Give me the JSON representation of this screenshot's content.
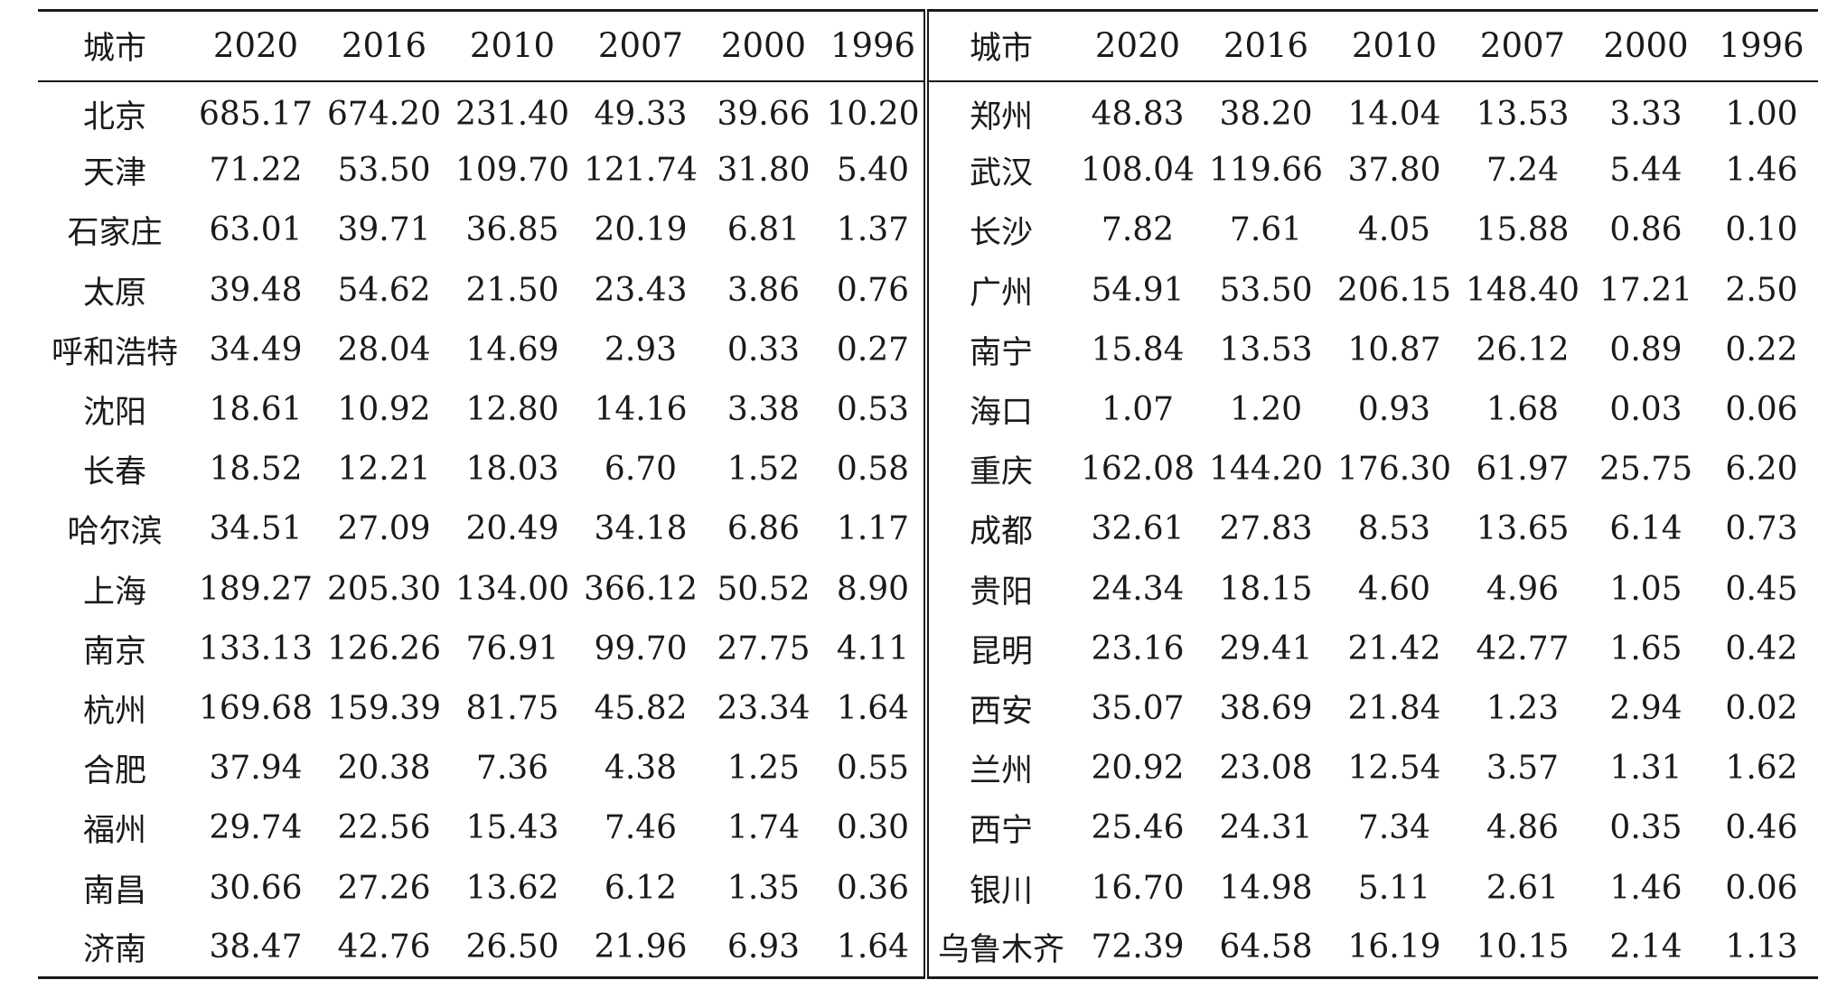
{
  "table": {
    "headers": [
      "城市",
      "2020",
      "2016",
      "2010",
      "2007",
      "2000",
      "1996"
    ],
    "left_rows": [
      [
        "北京",
        "685.17",
        "674.20",
        "231.40",
        "49.33",
        "39.66",
        "10.20"
      ],
      [
        "天津",
        "71.22",
        "53.50",
        "109.70",
        "121.74",
        "31.80",
        "5.40"
      ],
      [
        "石家庄",
        "63.01",
        "39.71",
        "36.85",
        "20.19",
        "6.81",
        "1.37"
      ],
      [
        "太原",
        "39.48",
        "54.62",
        "21.50",
        "23.43",
        "3.86",
        "0.76"
      ],
      [
        "呼和浩特",
        "34.49",
        "28.04",
        "14.69",
        "2.93",
        "0.33",
        "0.27"
      ],
      [
        "沈阳",
        "18.61",
        "10.92",
        "12.80",
        "14.16",
        "3.38",
        "0.53"
      ],
      [
        "长春",
        "18.52",
        "12.21",
        "18.03",
        "6.70",
        "1.52",
        "0.58"
      ],
      [
        "哈尔滨",
        "34.51",
        "27.09",
        "20.49",
        "34.18",
        "6.86",
        "1.17"
      ],
      [
        "上海",
        "189.27",
        "205.30",
        "134.00",
        "366.12",
        "50.52",
        "8.90"
      ],
      [
        "南京",
        "133.13",
        "126.26",
        "76.91",
        "99.70",
        "27.75",
        "4.11"
      ],
      [
        "杭州",
        "169.68",
        "159.39",
        "81.75",
        "45.82",
        "23.34",
        "1.64"
      ],
      [
        "合肥",
        "37.94",
        "20.38",
        "7.36",
        "4.38",
        "1.25",
        "0.55"
      ],
      [
        "福州",
        "29.74",
        "22.56",
        "15.43",
        "7.46",
        "1.74",
        "0.30"
      ],
      [
        "南昌",
        "30.66",
        "27.26",
        "13.62",
        "6.12",
        "1.35",
        "0.36"
      ],
      [
        "济南",
        "38.47",
        "42.76",
        "26.50",
        "21.96",
        "6.93",
        "1.64"
      ]
    ],
    "right_rows": [
      [
        "郑州",
        "48.83",
        "38.20",
        "14.04",
        "13.53",
        "3.33",
        "1.00"
      ],
      [
        "武汉",
        "108.04",
        "119.66",
        "37.80",
        "7.24",
        "5.44",
        "1.46"
      ],
      [
        "长沙",
        "7.82",
        "7.61",
        "4.05",
        "15.88",
        "0.86",
        "0.10"
      ],
      [
        "广州",
        "54.91",
        "53.50",
        "206.15",
        "148.40",
        "17.21",
        "2.50"
      ],
      [
        "南宁",
        "15.84",
        "13.53",
        "10.87",
        "26.12",
        "0.89",
        "0.22"
      ],
      [
        "海口",
        "1.07",
        "1.20",
        "0.93",
        "1.68",
        "0.03",
        "0.06"
      ],
      [
        "重庆",
        "162.08",
        "144.20",
        "176.30",
        "61.97",
        "25.75",
        "6.20"
      ],
      [
        "成都",
        "32.61",
        "27.83",
        "8.53",
        "13.65",
        "6.14",
        "0.73"
      ],
      [
        "贵阳",
        "24.34",
        "18.15",
        "4.60",
        "4.96",
        "1.05",
        "0.45"
      ],
      [
        "昆明",
        "23.16",
        "29.41",
        "21.42",
        "42.77",
        "1.65",
        "0.42"
      ],
      [
        "西安",
        "35.07",
        "38.69",
        "21.84",
        "1.23",
        "2.94",
        "0.02"
      ],
      [
        "兰州",
        "20.92",
        "23.08",
        "12.54",
        "3.57",
        "1.31",
        "1.62"
      ],
      [
        "西宁",
        "25.46",
        "24.31",
        "7.34",
        "4.86",
        "0.35",
        "0.46"
      ],
      [
        "银川",
        "16.70",
        "14.98",
        "5.11",
        "2.61",
        "1.46",
        "0.06"
      ],
      [
        "乌鲁木齐",
        "72.39",
        "64.58",
        "16.19",
        "10.15",
        "2.14",
        "1.13"
      ]
    ]
  }
}
